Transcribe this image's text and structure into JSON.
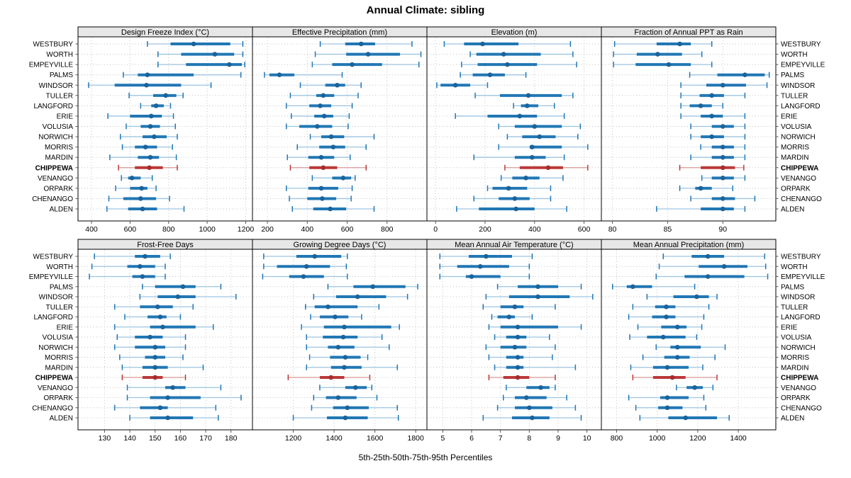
{
  "title": "Annual Climate: sibling",
  "xlabel": "5th-25th-50th-75th-95th Percentiles",
  "sites": [
    "WESTBURY",
    "WORTH",
    "EMPEYVILLE",
    "PALMS",
    "WINDSOR",
    "TULLER",
    "LANGFORD",
    "ERIE",
    "VOLUSIA",
    "NORWICH",
    "MORRIS",
    "MARDIN",
    "CHIPPEWA",
    "VENANGO",
    "ORPARK",
    "CHENANGO",
    "ALDEN"
  ],
  "highlight_site": "CHIPPEWA",
  "colors": {
    "series": {
      "main": "#2177b4",
      "whisker": "#9dc4e0",
      "dot": "#1b639a"
    },
    "highlight": {
      "main": "#bb3939",
      "whisker": "#d99694",
      "dot": "#a52f2c"
    },
    "grid": "#c4c4c4",
    "strip_bg": "#e7e7e7",
    "border": "#000000",
    "tick": "#555555"
  },
  "chart_data": {
    "type": "dotplot",
    "statistic": "percentiles",
    "percentiles": [
      5,
      25,
      50,
      75,
      95
    ],
    "legend": "none",
    "grid": "dotted both directions",
    "layout": {
      "rows": 2,
      "cols": 4
    },
    "panels": [
      {
        "title": "Design Freeze Index (°C)",
        "grid_row": 0,
        "grid_col": 0,
        "ticks": [
          400,
          600,
          800,
          1000,
          1200
        ],
        "xlim": [
          330,
          1235
        ],
        "values": [
          [
            690,
            810,
            930,
            1120,
            1185
          ],
          [
            745,
            865,
            1040,
            1140,
            1185
          ],
          [
            745,
            890,
            1115,
            1180,
            1195
          ],
          [
            565,
            640,
            690,
            930,
            1175
          ],
          [
            385,
            520,
            685,
            865,
            1020
          ],
          [
            595,
            720,
            785,
            840,
            875
          ],
          [
            655,
            710,
            735,
            775,
            810
          ],
          [
            485,
            600,
            710,
            765,
            825
          ],
          [
            580,
            655,
            705,
            755,
            835
          ],
          [
            550,
            665,
            725,
            790,
            845
          ],
          [
            560,
            625,
            680,
            740,
            820
          ],
          [
            495,
            640,
            705,
            750,
            840
          ],
          [
            540,
            625,
            700,
            770,
            845
          ],
          [
            555,
            590,
            610,
            655,
            715
          ],
          [
            525,
            600,
            660,
            690,
            735
          ],
          [
            490,
            565,
            655,
            735,
            805
          ],
          [
            480,
            590,
            665,
            740,
            880
          ]
        ]
      },
      {
        "title": "Effective Precipitation (mm)",
        "grid_row": 0,
        "grid_col": 1,
        "ticks": [
          200,
          400,
          600,
          800
        ],
        "xlim": [
          125,
          1000
        ],
        "values": [
          [
            465,
            590,
            670,
            740,
            925
          ],
          [
            440,
            595,
            705,
            865,
            970
          ],
          [
            425,
            525,
            625,
            775,
            960
          ],
          [
            185,
            210,
            260,
            335,
            575
          ],
          [
            365,
            490,
            550,
            590,
            670
          ],
          [
            315,
            445,
            480,
            535,
            655
          ],
          [
            295,
            410,
            465,
            520,
            625
          ],
          [
            320,
            435,
            485,
            530,
            610
          ],
          [
            295,
            360,
            450,
            525,
            605
          ],
          [
            415,
            470,
            520,
            585,
            735
          ],
          [
            350,
            460,
            530,
            590,
            695
          ],
          [
            300,
            405,
            470,
            535,
            615
          ],
          [
            315,
            410,
            480,
            550,
            695
          ],
          [
            425,
            525,
            580,
            620,
            640
          ],
          [
            295,
            405,
            470,
            555,
            625
          ],
          [
            310,
            400,
            475,
            545,
            620
          ],
          [
            325,
            430,
            515,
            595,
            735
          ]
        ]
      },
      {
        "title": "Elevation (m)",
        "grid_row": 0,
        "grid_col": 2,
        "ticks": [
          0,
          200,
          400,
          600
        ],
        "xlim": [
          -35,
          670
        ],
        "values": [
          [
            35,
            115,
            190,
            335,
            545
          ],
          [
            140,
            165,
            275,
            425,
            555
          ],
          [
            105,
            170,
            290,
            410,
            570
          ],
          [
            100,
            150,
            220,
            280,
            365
          ],
          [
            5,
            20,
            80,
            140,
            210
          ],
          [
            160,
            260,
            375,
            510,
            555
          ],
          [
            315,
            345,
            370,
            415,
            480
          ],
          [
            80,
            210,
            340,
            410,
            520
          ],
          [
            255,
            320,
            400,
            510,
            585
          ],
          [
            290,
            350,
            420,
            485,
            575
          ],
          [
            255,
            380,
            390,
            510,
            615
          ],
          [
            155,
            320,
            390,
            445,
            520
          ],
          [
            280,
            340,
            455,
            515,
            615
          ],
          [
            265,
            310,
            365,
            420,
            515
          ],
          [
            210,
            230,
            295,
            370,
            465
          ],
          [
            155,
            255,
            320,
            380,
            465
          ],
          [
            85,
            175,
            325,
            400,
            530
          ]
        ]
      },
      {
        "title": "Fraction of Annual PPT as Rain",
        "grid_row": 0,
        "grid_col": 3,
        "ticks": [
          80,
          85,
          90
        ],
        "xlim": [
          79,
          94.8
        ],
        "values": [
          [
            80.2,
            84,
            86.1,
            87.1,
            89
          ],
          [
            80.1,
            82.2,
            84.1,
            86.3,
            88.1
          ],
          [
            80.1,
            82.1,
            85.1,
            87.1,
            89
          ],
          [
            87,
            89.5,
            92,
            93.8,
            94.2
          ],
          [
            86.2,
            88.5,
            90,
            92.1,
            94
          ],
          [
            86.2,
            87.9,
            89,
            90.1,
            92
          ],
          [
            86.2,
            87,
            88,
            89,
            90
          ],
          [
            86.2,
            88,
            89,
            90,
            92
          ],
          [
            87.1,
            89,
            90,
            91,
            92
          ],
          [
            87.1,
            88,
            89,
            90.1,
            92
          ],
          [
            88,
            89,
            90,
            91,
            92
          ],
          [
            87.1,
            89,
            90,
            91,
            92
          ],
          [
            86.1,
            88,
            90,
            91.1,
            91.9
          ],
          [
            88.1,
            89,
            90,
            91,
            92
          ],
          [
            86.1,
            87.5,
            88,
            89,
            90.9
          ],
          [
            87.1,
            89,
            90,
            91.1,
            92.9
          ],
          [
            84,
            88,
            90,
            91,
            92
          ]
        ]
      },
      {
        "title": "Frost-Free Days",
        "grid_row": 1,
        "grid_col": 0,
        "ticks": [
          130,
          140,
          150,
          160,
          170,
          180
        ],
        "xlim": [
          119.5,
          188.5
        ],
        "values": [
          [
            126,
            142,
            146,
            152,
            156
          ],
          [
            125,
            139,
            144,
            150,
            154
          ],
          [
            124,
            141,
            145,
            150,
            154
          ],
          [
            145,
            150,
            161,
            166,
            176
          ],
          [
            144,
            151,
            159,
            166,
            182
          ],
          [
            134,
            144,
            151,
            157,
            165
          ],
          [
            138,
            147,
            152,
            154.5,
            160
          ],
          [
            134,
            148,
            153,
            166,
            173
          ],
          [
            135,
            142,
            148,
            153,
            162
          ],
          [
            134,
            142,
            150,
            154,
            162
          ],
          [
            136,
            146,
            150,
            154,
            161
          ],
          [
            137,
            145,
            150,
            155,
            169
          ],
          [
            137,
            145,
            150,
            153,
            162
          ],
          [
            139,
            154,
            157,
            162,
            176
          ],
          [
            139,
            148,
            155,
            168,
            184
          ],
          [
            134,
            144,
            152,
            155,
            174
          ],
          [
            140,
            148,
            155,
            165,
            175
          ]
        ]
      },
      {
        "title": "Growing Degree Days (°C)",
        "grid_row": 1,
        "grid_col": 1,
        "ticks": [
          1200,
          1400,
          1600,
          1800
        ],
        "xlim": [
          1000,
          1855
        ],
        "values": [
          [
            1055,
            1215,
            1305,
            1435,
            1465
          ],
          [
            1055,
            1120,
            1265,
            1380,
            1460
          ],
          [
            1050,
            1180,
            1250,
            1350,
            1465
          ],
          [
            1370,
            1495,
            1590,
            1750,
            1810
          ],
          [
            1300,
            1410,
            1515,
            1655,
            1760
          ],
          [
            1260,
            1305,
            1370,
            1515,
            1620
          ],
          [
            1285,
            1330,
            1405,
            1470,
            1535
          ],
          [
            1240,
            1350,
            1450,
            1680,
            1720
          ],
          [
            1265,
            1345,
            1445,
            1515,
            1635
          ],
          [
            1265,
            1370,
            1420,
            1500,
            1670
          ],
          [
            1280,
            1380,
            1455,
            1530,
            1565
          ],
          [
            1265,
            1385,
            1450,
            1535,
            1710
          ],
          [
            1175,
            1330,
            1385,
            1450,
            1575
          ],
          [
            1330,
            1455,
            1505,
            1560,
            1585
          ],
          [
            1300,
            1360,
            1420,
            1510,
            1610
          ],
          [
            1290,
            1395,
            1465,
            1570,
            1710
          ],
          [
            1200,
            1365,
            1455,
            1565,
            1715
          ]
        ]
      },
      {
        "title": "Mean Annual Air Temperature (°C)",
        "grid_row": 1,
        "grid_col": 2,
        "ticks": [
          5,
          6,
          7,
          8,
          9,
          10
        ],
        "xlim": [
          4.45,
          10.5
        ],
        "values": [
          [
            4.9,
            5.9,
            6.5,
            7.4,
            8.1
          ],
          [
            4.9,
            5.5,
            6.3,
            7.3,
            8.0
          ],
          [
            4.9,
            5.8,
            6.0,
            7.0,
            8.0
          ],
          [
            6.9,
            7.6,
            8.3,
            9.0,
            9.8
          ],
          [
            6.5,
            7.3,
            8.3,
            9.4,
            10.2
          ],
          [
            6.4,
            7.0,
            7.5,
            7.8,
            8.9
          ],
          [
            6.7,
            6.9,
            7.3,
            7.5,
            8.1
          ],
          [
            6.6,
            7.0,
            7.6,
            9.0,
            9.8
          ],
          [
            6.8,
            7.2,
            7.6,
            7.9,
            8.7
          ],
          [
            6.5,
            7.0,
            7.5,
            7.9,
            8.9
          ],
          [
            6.6,
            7.2,
            7.6,
            7.8,
            8.8
          ],
          [
            6.8,
            7.2,
            7.6,
            7.8,
            9.6
          ],
          [
            6.6,
            7.1,
            7.6,
            8.0,
            8.9
          ],
          [
            7.2,
            7.9,
            8.4,
            8.7,
            8.9
          ],
          [
            7.1,
            7.5,
            7.9,
            8.6,
            9.3
          ],
          [
            6.9,
            7.5,
            8.0,
            8.8,
            9.6
          ],
          [
            6.4,
            7.4,
            8.1,
            8.7,
            9.8
          ]
        ]
      },
      {
        "title": "Mean Annual Precipitation (mm)",
        "grid_row": 1,
        "grid_col": 3,
        "ticks": [
          800,
          1000,
          1200,
          1400
        ],
        "xlim": [
          725,
          1585
        ],
        "values": [
          [
            1030,
            1170,
            1250,
            1330,
            1530
          ],
          [
            1010,
            1205,
            1330,
            1445,
            1535
          ],
          [
            995,
            1135,
            1250,
            1430,
            1545
          ],
          [
            780,
            850,
            880,
            975,
            1185
          ],
          [
            950,
            1080,
            1195,
            1255,
            1295
          ],
          [
            880,
            990,
            1045,
            1090,
            1255
          ],
          [
            860,
            975,
            1045,
            1090,
            1230
          ],
          [
            905,
            1020,
            1100,
            1145,
            1220
          ],
          [
            865,
            950,
            1030,
            1140,
            1195
          ],
          [
            995,
            1065,
            1100,
            1215,
            1335
          ],
          [
            930,
            1035,
            1100,
            1160,
            1285
          ],
          [
            870,
            980,
            1050,
            1155,
            1225
          ],
          [
            880,
            980,
            1075,
            1140,
            1295
          ],
          [
            1095,
            1145,
            1185,
            1225,
            1275
          ],
          [
            860,
            1015,
            1050,
            1155,
            1230
          ],
          [
            895,
            1005,
            1050,
            1125,
            1240
          ],
          [
            915,
            1055,
            1140,
            1295,
            1355
          ]
        ]
      }
    ]
  }
}
